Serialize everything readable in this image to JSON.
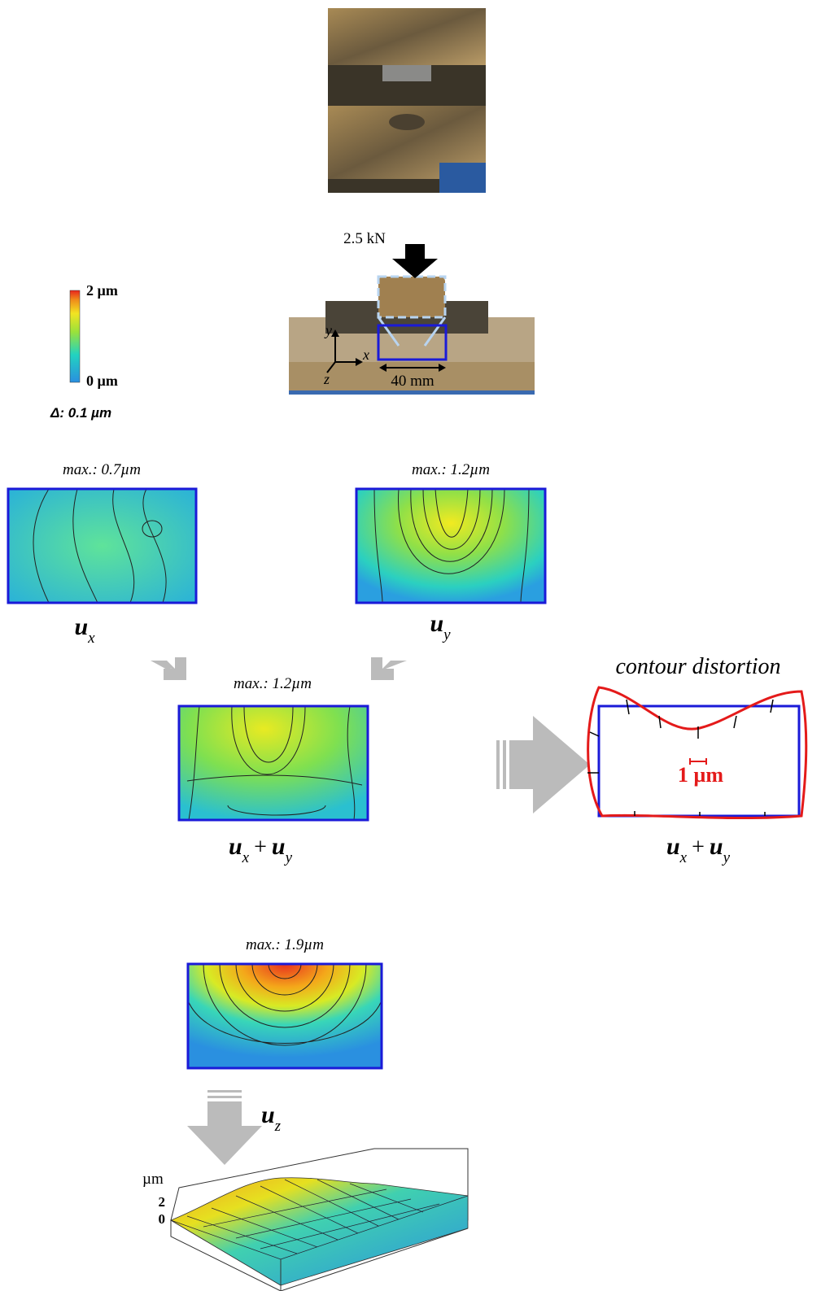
{
  "setup": {
    "force": "2.5 kN",
    "axis_y": "y",
    "axis_x": "x",
    "axis_z": "z",
    "width": "40 mm"
  },
  "colorbar": {
    "max": "2 µm",
    "min": "0 µm",
    "step": "Δ: 0.1 µm"
  },
  "panels": [
    {
      "title": "max.: 0.7µm",
      "label": {
        "terms": [
          {
            "symbol": "u",
            "sub": "x"
          }
        ]
      }
    },
    {
      "title": "max.: 1.2µm",
      "label": {
        "terms": [
          {
            "symbol": "u",
            "sub": "y"
          }
        ]
      }
    },
    {
      "title": "max.: 1.2µm",
      "label": {
        "terms": [
          {
            "symbol": "u",
            "sub": "x"
          },
          {
            "symbol": "u",
            "sub": "y"
          }
        ],
        "operator": "+"
      }
    },
    {
      "title": "max.: 1.9µm",
      "label": {
        "terms": [
          {
            "symbol": "u",
            "sub": "z"
          }
        ]
      }
    }
  ],
  "contour_distortion": {
    "title": "contour distortion",
    "scale": "1 µm",
    "label": {
      "terms": [
        {
          "symbol": "u",
          "sub": "x"
        },
        {
          "symbol": "u",
          "sub": "y"
        }
      ],
      "operator": "+"
    }
  },
  "surface_plot": {
    "unit": "µm",
    "ticks": [
      "2",
      "0"
    ]
  }
}
